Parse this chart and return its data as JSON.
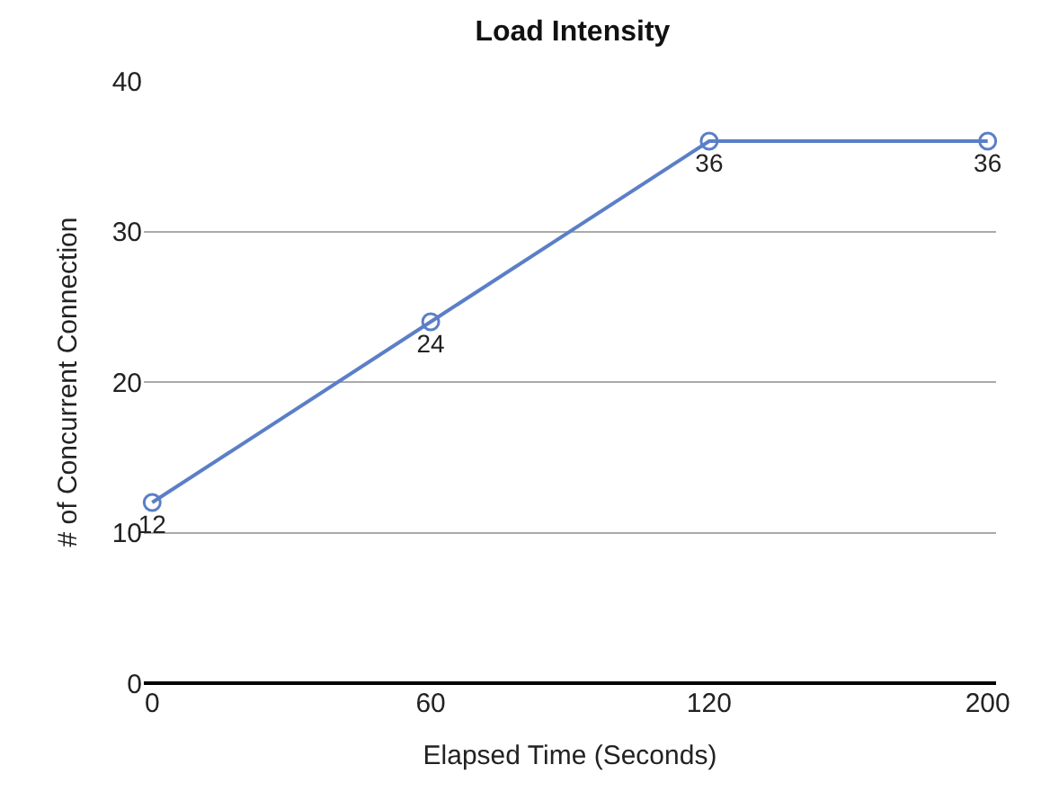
{
  "chart_data": {
    "type": "line",
    "title": "Load Intensity",
    "xlabel": "Elapsed Time (Seconds)",
    "ylabel": "# of Concurrent Connection",
    "categories": [
      "0",
      "60",
      "120",
      "200"
    ],
    "series": [
      {
        "color": "#5b7fc7",
        "values": [
          12,
          24,
          36,
          36
        ]
      }
    ],
    "ylim": [
      0,
      40
    ],
    "yticks": [
      0,
      10,
      20,
      30,
      40
    ],
    "grid": "y",
    "marker": "circle",
    "line_style": "solid",
    "data_labels": true,
    "legend": false
  }
}
